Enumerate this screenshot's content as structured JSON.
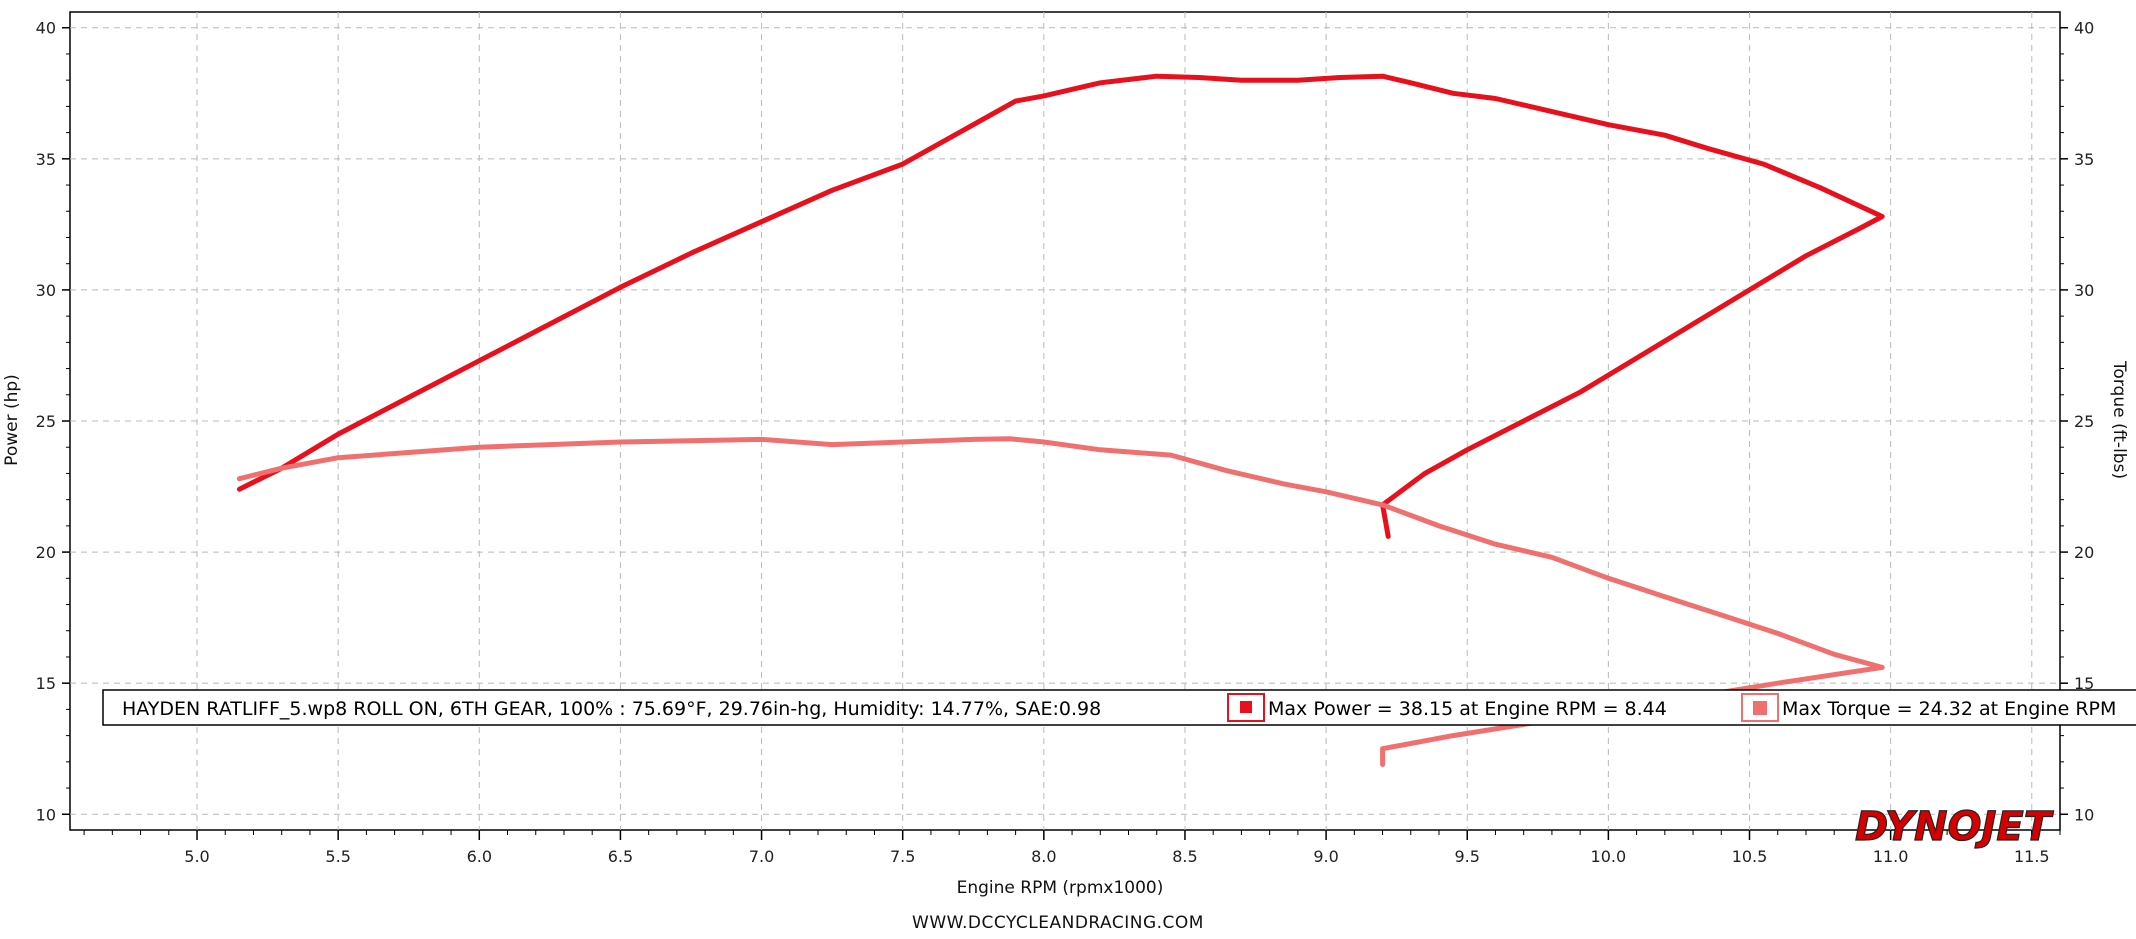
{
  "chart_data": {
    "type": "line",
    "xlabel": "Engine RPM (rpmx1000)",
    "ylabel": "Power (hp)",
    "y2label": "Torque (ft-lbs)",
    "xlim": [
      4.55,
      11.6
    ],
    "ylim": [
      9.4,
      40.6
    ],
    "xticks": [
      "5.0",
      "5.5",
      "6.0",
      "6.5",
      "7.0",
      "7.5",
      "8.0",
      "8.5",
      "9.0",
      "9.5",
      "10.0",
      "10.5",
      "11.0",
      "11.5"
    ],
    "yticks": [
      "10",
      "15",
      "20",
      "25",
      "30",
      "35",
      "40"
    ],
    "grid": true,
    "footer": "WWW.DCCYCLEANDRACING.COM",
    "logo": "DYNOJET",
    "legend": {
      "run_info": "HAYDEN RATLIFF_5.wp8 ROLL ON, 6TH GEAR, 100%    : 75.69°F, 29.76in-hg, Humidity: 14.77%, SAE:0.98",
      "max_power": "Max Power = 38.15 at Engine RPM = 8.44",
      "max_torque": "Max Torque = 24.32 at Engine RPM"
    },
    "series": [
      {
        "name": "Power",
        "color": "#e8101c",
        "x": [
          5.15,
          5.3,
          5.5,
          5.75,
          6.0,
          6.25,
          6.5,
          6.75,
          7.0,
          7.25,
          7.5,
          7.75,
          7.9,
          8.0,
          8.2,
          8.4,
          8.55,
          8.7,
          8.9,
          9.05,
          9.2,
          9.3,
          9.45,
          9.6,
          9.8,
          10.0,
          10.2,
          10.35,
          10.55,
          10.75,
          10.97,
          10.9,
          10.7,
          10.5,
          10.3,
          10.1,
          9.9,
          9.7,
          9.5,
          9.35,
          9.2,
          9.22
        ],
        "y": [
          22.4,
          23.2,
          24.5,
          25.9,
          27.3,
          28.7,
          30.1,
          31.4,
          32.6,
          33.8,
          34.8,
          36.3,
          37.2,
          37.4,
          37.9,
          38.15,
          38.1,
          38.0,
          38.0,
          38.1,
          38.15,
          37.9,
          37.5,
          37.3,
          36.8,
          36.3,
          35.9,
          35.4,
          34.8,
          33.9,
          32.8,
          32.4,
          31.3,
          30.0,
          28.7,
          27.4,
          26.1,
          25.0,
          23.9,
          23.0,
          21.8,
          20.6
        ]
      },
      {
        "name": "Torque",
        "color": "#f07070",
        "x": [
          5.15,
          5.3,
          5.5,
          5.75,
          6.0,
          6.25,
          6.5,
          6.75,
          7.0,
          7.25,
          7.5,
          7.75,
          7.88,
          8.0,
          8.2,
          8.45,
          8.65,
          8.85,
          9.0,
          9.2,
          9.4,
          9.6,
          9.8,
          10.0,
          10.2,
          10.4,
          10.6,
          10.8,
          10.97,
          10.6,
          10.2,
          9.8,
          9.45,
          9.2,
          9.2
        ],
        "y": [
          22.8,
          23.2,
          23.6,
          23.8,
          24.0,
          24.1,
          24.2,
          24.25,
          24.3,
          24.1,
          24.2,
          24.3,
          24.32,
          24.2,
          23.9,
          23.7,
          23.1,
          22.6,
          22.3,
          21.8,
          21.0,
          20.3,
          19.8,
          19.0,
          18.3,
          17.6,
          16.9,
          16.1,
          15.6,
          15.0,
          14.3,
          13.6,
          13.0,
          12.5,
          11.9
        ]
      }
    ]
  }
}
